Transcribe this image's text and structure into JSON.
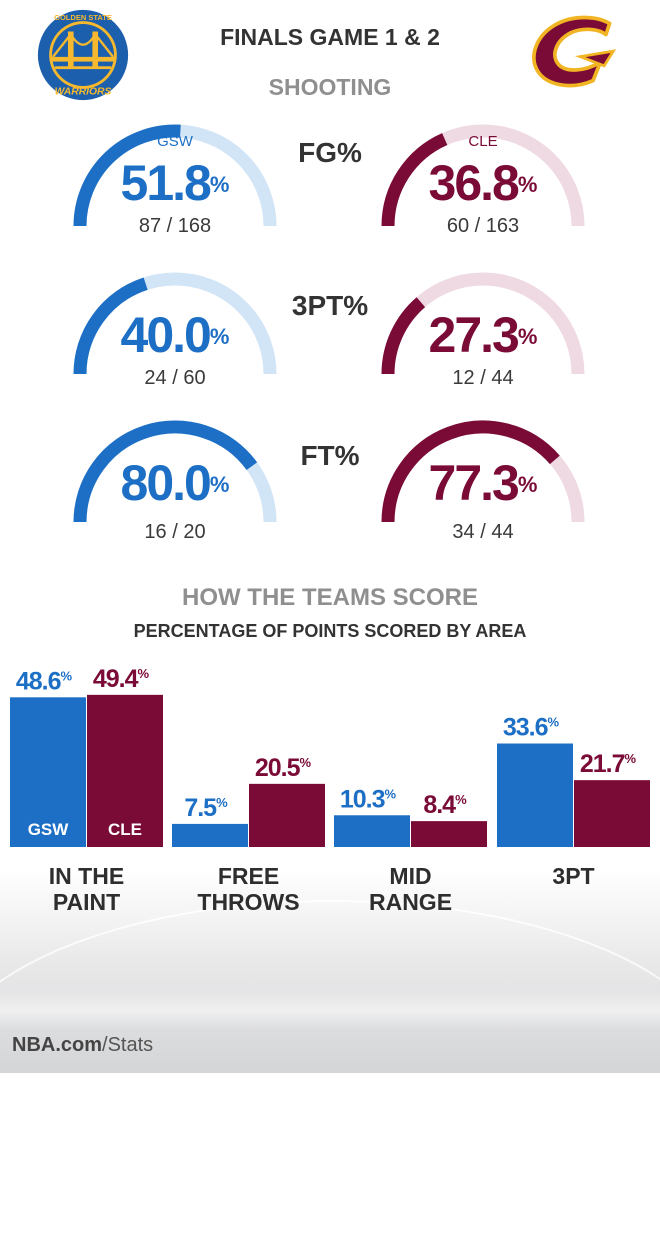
{
  "header": {
    "title": "FINALS GAME 1 & 2",
    "section_title": "SHOOTING",
    "left_logo": "golden-state-warriors-logo",
    "right_logo": "cleveland-cavaliers-logo",
    "gsw_logo_text": "GOLDEN STATE WARRIORS"
  },
  "colors": {
    "gsw": "#1c6fc5",
    "gsw_light": "#d2e5f6",
    "cle": "#7a0a36",
    "cle_light": "#efd9e2",
    "cle_gold": "#f1b524"
  },
  "shooting": [
    {
      "label": "FG%",
      "gsw": {
        "team": "GSW",
        "pct_value": 51.8,
        "pct_text": "51.8",
        "fraction": "87 / 168"
      },
      "cle": {
        "team": "CLE",
        "pct_value": 36.8,
        "pct_text": "36.8",
        "fraction": "60 / 163"
      }
    },
    {
      "label": "3PT%",
      "gsw": {
        "team": "",
        "pct_value": 40.0,
        "pct_text": "40.0",
        "fraction": "24 / 60"
      },
      "cle": {
        "team": "",
        "pct_value": 27.3,
        "pct_text": "27.3",
        "fraction": "12 / 44"
      }
    },
    {
      "label": "FT%",
      "gsw": {
        "team": "",
        "pct_value": 80.0,
        "pct_text": "80.0",
        "fraction": "16 / 20"
      },
      "cle": {
        "team": "",
        "pct_value": 77.3,
        "pct_text": "77.3",
        "fraction": "34 / 44"
      }
    }
  ],
  "percent_sign": "%",
  "scoring": {
    "title": "HOW THE TEAMS SCORE",
    "subtitle": "PERCENTAGE OF POINTS SCORED BY AREA"
  },
  "chart_data": {
    "type": "bar",
    "title": "HOW THE TEAMS SCORE",
    "subtitle": "PERCENTAGE OF POINTS SCORED BY AREA",
    "categories": [
      "IN THE\nPAINT",
      "FREE\nTHROWS",
      "MID\nRANGE",
      "3PT"
    ],
    "series": [
      {
        "name": "GSW",
        "values": [
          48.6,
          7.5,
          10.3,
          33.6
        ],
        "labels": [
          "48.6",
          "7.5",
          "10.3",
          "33.6"
        ]
      },
      {
        "name": "CLE",
        "values": [
          49.4,
          20.5,
          8.4,
          21.7
        ],
        "labels": [
          "49.4",
          "20.5",
          "8.4",
          "21.7"
        ]
      }
    ],
    "ylim": [
      0,
      100
    ],
    "grid": false,
    "legend": "inside-bars"
  },
  "source": {
    "prefix": "NBA.com",
    "suffix": "/Stats"
  }
}
